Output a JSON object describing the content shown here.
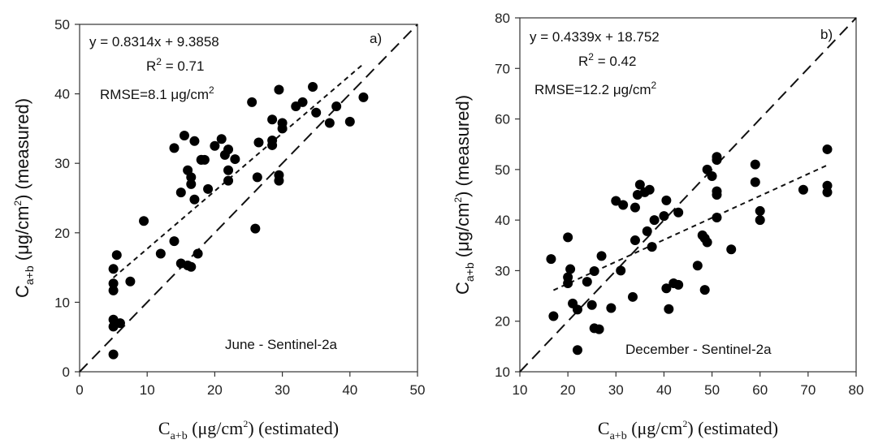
{
  "chart_data": [
    {
      "type": "scatter",
      "panel_label": "a)",
      "equation": "y = 0.8314x + 9.3858",
      "r2_label": "R",
      "r2_sup": "2",
      "r2_value": " = 0.71",
      "rmse_text": "RMSE=8.1 μg/cm",
      "rmse_sup": "2",
      "annotation": "June - Sentinel-2a",
      "xlabel": {
        "base": "C",
        "sub": "a+b",
        "rest": " (μg/cm",
        "sup": "2",
        "end": ") (estimated)"
      },
      "ylabel": {
        "base": "C",
        "sub": "a+b",
        "rest": " (μg/cm",
        "sup": "2",
        "end": ") (measured)"
      },
      "xlim": [
        0,
        50
      ],
      "ylim": [
        0,
        50
      ],
      "xticks": [
        0,
        10,
        20,
        30,
        40,
        50
      ],
      "yticks": [
        0,
        10,
        20,
        30,
        40,
        50
      ],
      "one_to_one_line": true,
      "fit": {
        "slope": 0.8314,
        "intercept": 9.3858,
        "x_range": [
          5,
          42
        ]
      },
      "points": [
        [
          5,
          2.5
        ],
        [
          5,
          6.5
        ],
        [
          5,
          7.5
        ],
        [
          6,
          7
        ],
        [
          5,
          11.7
        ],
        [
          5,
          12.7
        ],
        [
          5,
          14.8
        ],
        [
          5.5,
          16.8
        ],
        [
          7.5,
          13
        ],
        [
          9.5,
          21.7
        ],
        [
          12,
          17
        ],
        [
          14,
          18.8
        ],
        [
          15,
          15.6
        ],
        [
          16,
          15.3
        ],
        [
          16.5,
          15.1
        ],
        [
          17.5,
          17
        ],
        [
          14,
          32.2
        ],
        [
          15,
          25.8
        ],
        [
          15.5,
          34
        ],
        [
          16,
          29
        ],
        [
          16.5,
          28
        ],
        [
          16.5,
          27
        ],
        [
          17,
          24.8
        ],
        [
          17,
          33.2
        ],
        [
          18,
          30.5
        ],
        [
          18,
          30.5
        ],
        [
          18.5,
          30.5
        ],
        [
          19,
          26.3
        ],
        [
          20,
          32.5
        ],
        [
          21,
          33.5
        ],
        [
          21.5,
          31.2
        ],
        [
          22,
          32
        ],
        [
          22,
          29
        ],
        [
          22,
          27.5
        ],
        [
          23,
          30.6
        ],
        [
          25.5,
          38.8
        ],
        [
          26,
          20.6
        ],
        [
          26.3,
          28
        ],
        [
          26.5,
          33
        ],
        [
          28.5,
          32.6
        ],
        [
          28.5,
          33.3
        ],
        [
          28.5,
          36.3
        ],
        [
          29.5,
          40.6
        ],
        [
          29.5,
          27.5
        ],
        [
          29.5,
          28.3
        ],
        [
          30,
          35.8
        ],
        [
          30,
          35
        ],
        [
          32,
          38.2
        ],
        [
          33,
          38.8
        ],
        [
          34.5,
          41
        ],
        [
          35,
          37.3
        ],
        [
          37,
          35.8
        ],
        [
          38,
          38.2
        ],
        [
          40,
          36
        ],
        [
          42,
          39.5
        ]
      ]
    },
    {
      "type": "scatter",
      "panel_label": "b)",
      "equation": "y = 0.4339x + 18.752",
      "r2_label": "R",
      "r2_sup": "2",
      "r2_value": " = 0.42",
      "rmse_text": "RMSE=12.2 μg/cm",
      "rmse_sup": "2",
      "annotation": "December - Sentinel-2a",
      "xlabel": {
        "base": "C",
        "sub": "a+b",
        "rest": " (μg/cm",
        "sup": "2",
        "end": ") (estimated)"
      },
      "ylabel": {
        "base": "C",
        "sub": "a+b",
        "rest": " (μg/cm",
        "sup": "2",
        "end": ") (measured)"
      },
      "xlim": [
        10,
        80
      ],
      "ylim": [
        10,
        80
      ],
      "xticks": [
        10,
        20,
        30,
        40,
        50,
        60,
        70,
        80
      ],
      "yticks": [
        10,
        20,
        30,
        40,
        50,
        60,
        70,
        80
      ],
      "one_to_one_line": true,
      "fit": {
        "slope": 0.4339,
        "intercept": 18.752,
        "x_range": [
          17,
          74
        ]
      },
      "points": [
        [
          16.5,
          32.3
        ],
        [
          17,
          21
        ],
        [
          20,
          28.7
        ],
        [
          20,
          27.5
        ],
        [
          20,
          36.6
        ],
        [
          20.5,
          30.3
        ],
        [
          21,
          23.5
        ],
        [
          22,
          22.3
        ],
        [
          22,
          14.3
        ],
        [
          24,
          27.8
        ],
        [
          25,
          23.2
        ],
        [
          25.5,
          29.9
        ],
        [
          25.5,
          18.6
        ],
        [
          26.5,
          18.4
        ],
        [
          27,
          32.9
        ],
        [
          29,
          22.6
        ],
        [
          30,
          43.8
        ],
        [
          31,
          30
        ],
        [
          31.5,
          43
        ],
        [
          33.5,
          24.8
        ],
        [
          34,
          36
        ],
        [
          34,
          42.5
        ],
        [
          34.5,
          45
        ],
        [
          35,
          47
        ],
        [
          36,
          45.5
        ],
        [
          37,
          46
        ],
        [
          36.5,
          37.8
        ],
        [
          37.5,
          34.7
        ],
        [
          38,
          40
        ],
        [
          40,
          40.8
        ],
        [
          40.5,
          43.9
        ],
        [
          40.5,
          26.5
        ],
        [
          41,
          22.4
        ],
        [
          42,
          27.5
        ],
        [
          43,
          27.2
        ],
        [
          43,
          41.5
        ],
        [
          47,
          31
        ],
        [
          48,
          37
        ],
        [
          48.5,
          36.4
        ],
        [
          48.5,
          26.2
        ],
        [
          49,
          35.6
        ],
        [
          49,
          50
        ],
        [
          50,
          48.7
        ],
        [
          51,
          51.9
        ],
        [
          51,
          52.5
        ],
        [
          51,
          45.7
        ],
        [
          51,
          45
        ],
        [
          51,
          40.5
        ],
        [
          54,
          34.2
        ],
        [
          59,
          51
        ],
        [
          59,
          47.5
        ],
        [
          60,
          41.8
        ],
        [
          60,
          40
        ],
        [
          69,
          46
        ],
        [
          74,
          54
        ],
        [
          74,
          46.8
        ],
        [
          74,
          45.5
        ]
      ]
    }
  ]
}
